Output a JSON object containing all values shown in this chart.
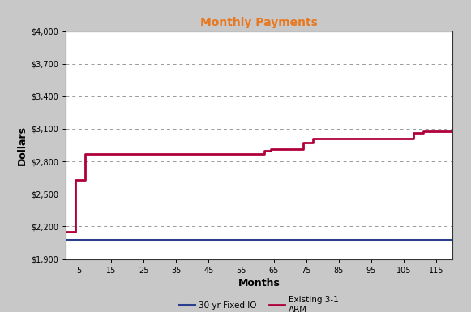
{
  "title": "Monthly Payments",
  "title_color": "#E87820",
  "xlabel": "Months",
  "ylabel": "Dollars",
  "background_color": "#C8C8C8",
  "plot_bg_color": "#FFFFFF",
  "ylim": [
    1900,
    4000
  ],
  "yticks": [
    1900,
    2200,
    2500,
    2800,
    3100,
    3400,
    3700,
    4000
  ],
  "xticks": [
    5,
    15,
    25,
    35,
    45,
    55,
    65,
    75,
    85,
    95,
    105,
    115
  ],
  "xlim": [
    1,
    120
  ],
  "fixed_value": 2075,
  "arm_x": [
    1,
    4,
    4,
    7,
    7,
    14,
    14,
    62,
    62,
    64,
    64,
    74,
    74,
    77,
    77,
    108,
    108,
    111,
    111,
    120
  ],
  "arm_y": [
    2148,
    2148,
    2630,
    2630,
    2870,
    2870,
    2870,
    2870,
    2895,
    2895,
    2910,
    2910,
    2970,
    2970,
    3010,
    3010,
    3060,
    3060,
    3080,
    3080
  ],
  "fixed_color": "#2B3F8C",
  "arm_color": "#B0003A",
  "legend_labels": [
    "30 yr Fixed IO",
    "Existing 3-1\nARM"
  ],
  "grid_color": "#999999",
  "tick_fontsize": 7,
  "label_fontsize": 9,
  "title_fontsize": 10
}
